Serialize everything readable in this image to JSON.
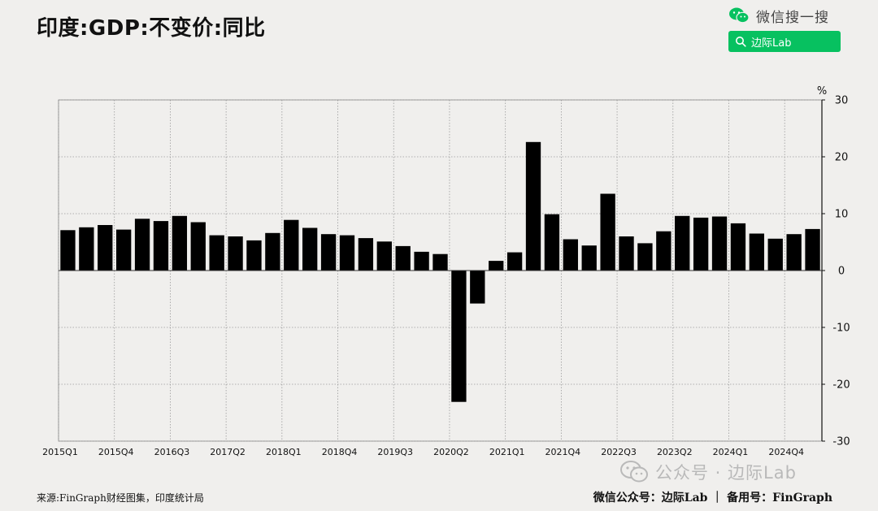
{
  "header": {
    "title": "印度:GDP:不变价:同比"
  },
  "wechat": {
    "search_text": "微信搜一搜",
    "search_button_label": "边际Lab",
    "accent": "#07c160"
  },
  "chart_data": {
    "type": "bar",
    "title": "印度:GDP:不变价:同比",
    "ylabel": "%",
    "ylim": [
      -30,
      30
    ],
    "yticks": [
      30,
      20,
      10,
      0,
      -10,
      -20,
      -30
    ],
    "grid": true,
    "bar_color": "#000000",
    "categories": [
      "2015Q1",
      "2015Q2",
      "2015Q3",
      "2015Q4",
      "2016Q1",
      "2016Q2",
      "2016Q3",
      "2016Q4",
      "2017Q1",
      "2017Q2",
      "2017Q3",
      "2017Q4",
      "2018Q1",
      "2018Q2",
      "2018Q3",
      "2018Q4",
      "2019Q1",
      "2019Q2",
      "2019Q3",
      "2019Q4",
      "2020Q1",
      "2020Q2",
      "2020Q3",
      "2020Q4",
      "2021Q1",
      "2021Q2",
      "2021Q3",
      "2021Q4",
      "2022Q1",
      "2022Q2",
      "2022Q3",
      "2022Q4",
      "2023Q1",
      "2023Q2",
      "2023Q3",
      "2023Q4",
      "2024Q1",
      "2024Q2",
      "2024Q3",
      "2024Q4",
      "2025Q1"
    ],
    "values": [
      7.1,
      7.6,
      8.0,
      7.2,
      9.1,
      8.7,
      9.6,
      8.5,
      6.2,
      6.0,
      5.3,
      6.6,
      8.9,
      7.5,
      6.4,
      6.2,
      5.7,
      5.1,
      4.3,
      3.3,
      2.9,
      -23.1,
      -5.8,
      1.7,
      3.2,
      22.6,
      9.9,
      5.5,
      4.4,
      13.5,
      6.0,
      4.8,
      6.9,
      9.6,
      9.3,
      9.5,
      8.3,
      6.5,
      5.6,
      6.4,
      7.3
    ],
    "xtick_labels": [
      "2015Q1",
      "2015Q4",
      "2016Q3",
      "2017Q2",
      "2018Q1",
      "2018Q4",
      "2019Q3",
      "2020Q2",
      "2021Q1",
      "2021Q4",
      "2022Q3",
      "2023Q2",
      "2024Q1",
      "2024Q4"
    ]
  },
  "footer": {
    "source": "来源:FinGraph财经图集，印度统计局",
    "credit": "微信公众号：边际Lab ｜ 备用号：FinGraph"
  },
  "watermark": {
    "text": "公众号 · 边际Lab"
  }
}
